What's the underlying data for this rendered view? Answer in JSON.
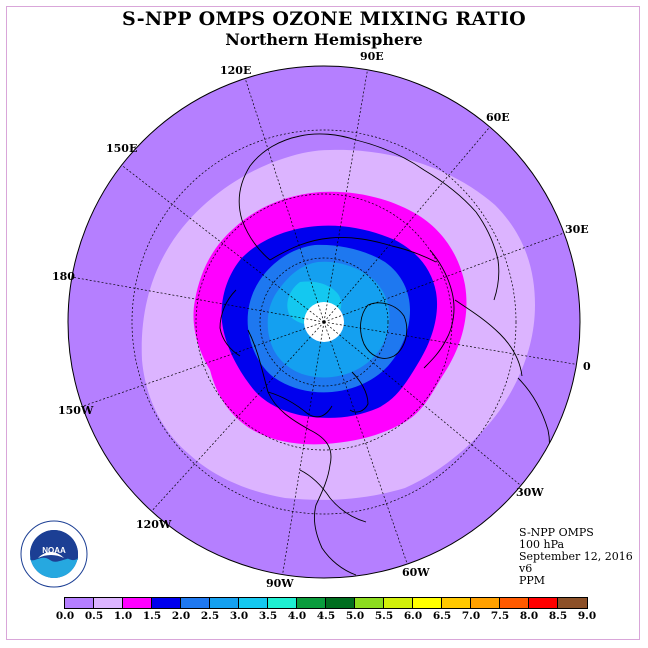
{
  "title": "S-NPP OMPS OZONE MIXING RATIO",
  "subtitle": "Northern Hemisphere",
  "info": {
    "instrument": "S-NPP OMPS",
    "level": "100 hPa",
    "date": "September 12, 2016",
    "version": "v6",
    "units": "PPM"
  },
  "longitude_labels": [
    "90E",
    "60E",
    "30E",
    "0",
    "30W",
    "60W",
    "90W",
    "120W",
    "150W",
    "180",
    "150E",
    "120E"
  ],
  "colorbar": {
    "colors": [
      "#b57fff",
      "#dcb4ff",
      "#ff00ff",
      "#0000ee",
      "#1e78f0",
      "#14a0f0",
      "#14c8f0",
      "#1ef0d2",
      "#0a9c3c",
      "#006e1e",
      "#8cdc1e",
      "#d2f00a",
      "#ffff00",
      "#ffc800",
      "#ffa000",
      "#ff5a00",
      "#ff0000",
      "#8c5028"
    ],
    "ticks": [
      "0.0",
      "0.5",
      "1.0",
      "1.5",
      "2.0",
      "2.5",
      "3.0",
      "3.5",
      "4.0",
      "4.5",
      "5.0",
      "5.5",
      "6.0",
      "6.5",
      "7.0",
      "7.5",
      "8.0",
      "8.5",
      "9.0"
    ]
  },
  "logo": {
    "text": "NOAA",
    "ring_text": "NATIONAL OCEANIC AND ATMOSPHERIC ADMINISTRATION · U.S. DEPARTMENT OF COMMERCE"
  }
}
